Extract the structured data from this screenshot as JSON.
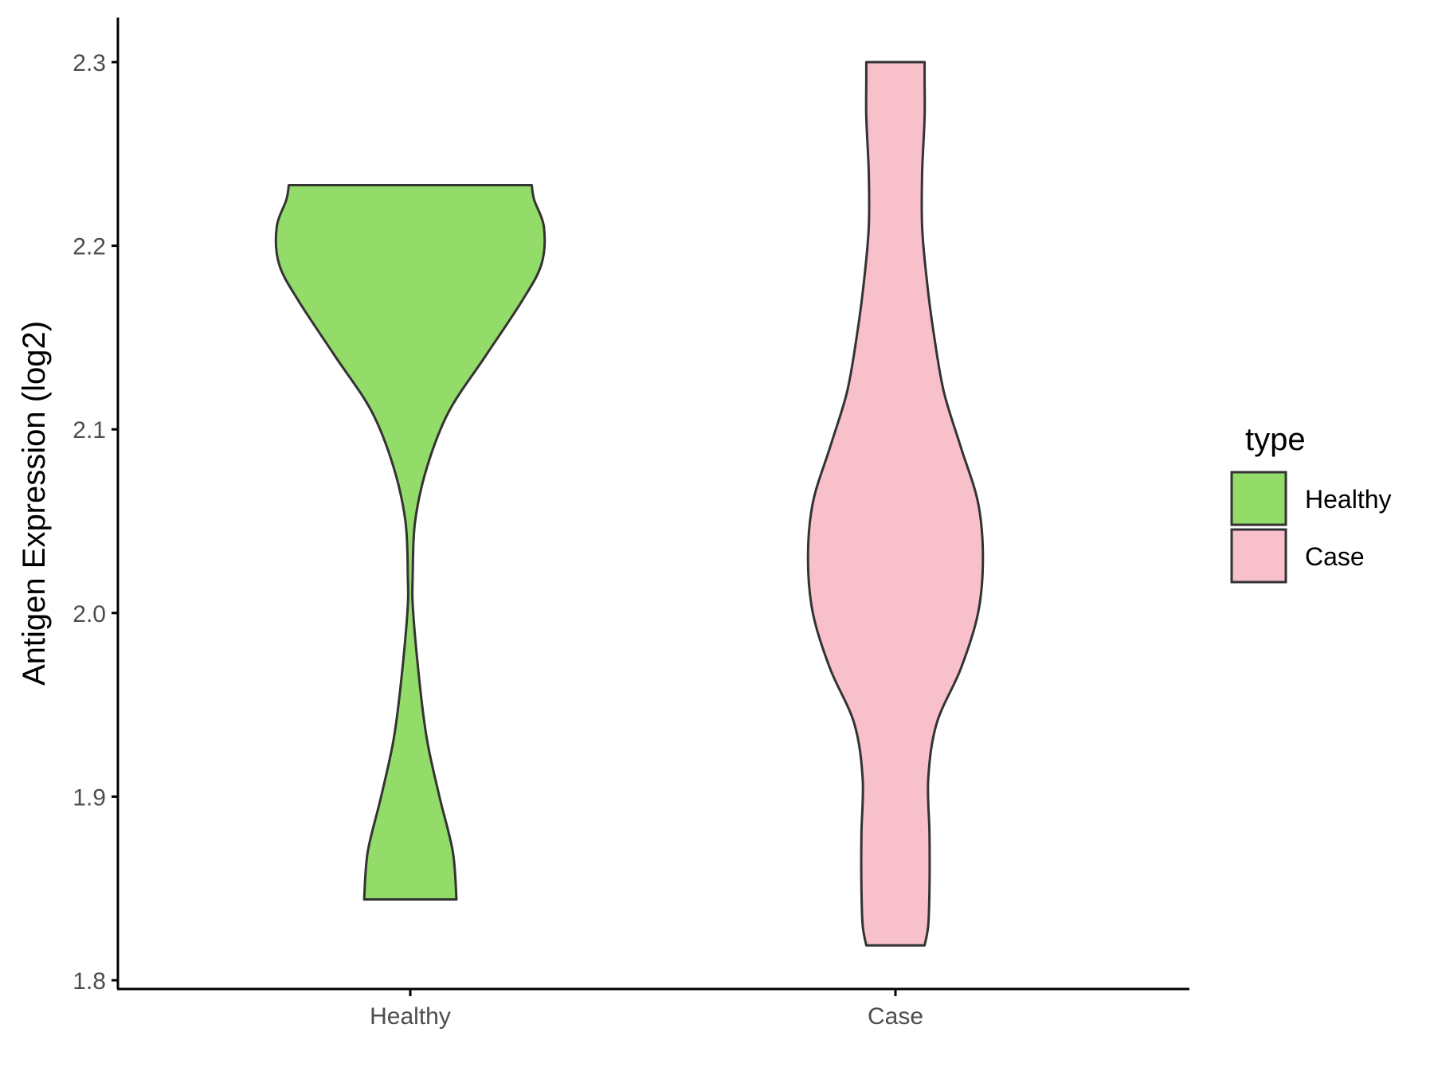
{
  "chart_data": {
    "type": "violin",
    "ylabel": "Antigen Expression (log2)",
    "xlabel": "",
    "ylim": [
      1.8,
      2.3
    ],
    "yticks": [
      "1.8",
      "1.9",
      "2.0",
      "2.1",
      "2.2",
      "2.3"
    ],
    "categories": [
      "Healthy",
      "Case"
    ],
    "legend": {
      "title": "type",
      "position": "right"
    },
    "grid": false,
    "series": [
      {
        "name": "Healthy",
        "color": "#93DC6A",
        "outline": "#333333",
        "y_min": 1.844,
        "y_max": 2.233,
        "profile": [
          [
            1.844,
            0.19
          ],
          [
            1.87,
            0.175
          ],
          [
            1.9,
            0.12
          ],
          [
            1.93,
            0.07
          ],
          [
            1.96,
            0.04
          ],
          [
            2.0,
            0.012
          ],
          [
            2.02,
            0.01
          ],
          [
            2.05,
            0.02
          ],
          [
            2.08,
            0.07
          ],
          [
            2.11,
            0.16
          ],
          [
            2.14,
            0.31
          ],
          [
            2.17,
            0.46
          ],
          [
            2.19,
            0.54
          ],
          [
            2.21,
            0.55
          ],
          [
            2.225,
            0.51
          ],
          [
            2.233,
            0.5
          ]
        ]
      },
      {
        "name": "Case",
        "color": "#F7C0CB",
        "outline": "#333333",
        "y_min": 1.819,
        "y_max": 2.3,
        "profile": [
          [
            1.819,
            0.12
          ],
          [
            1.83,
            0.135
          ],
          [
            1.85,
            0.14
          ],
          [
            1.88,
            0.14
          ],
          [
            1.91,
            0.135
          ],
          [
            1.94,
            0.17
          ],
          [
            1.97,
            0.27
          ],
          [
            2.0,
            0.34
          ],
          [
            2.03,
            0.36
          ],
          [
            2.06,
            0.34
          ],
          [
            2.09,
            0.27
          ],
          [
            2.12,
            0.2
          ],
          [
            2.15,
            0.16
          ],
          [
            2.18,
            0.13
          ],
          [
            2.21,
            0.11
          ],
          [
            2.24,
            0.11
          ],
          [
            2.27,
            0.12
          ],
          [
            2.29,
            0.12
          ],
          [
            2.3,
            0.12
          ]
        ]
      }
    ]
  }
}
